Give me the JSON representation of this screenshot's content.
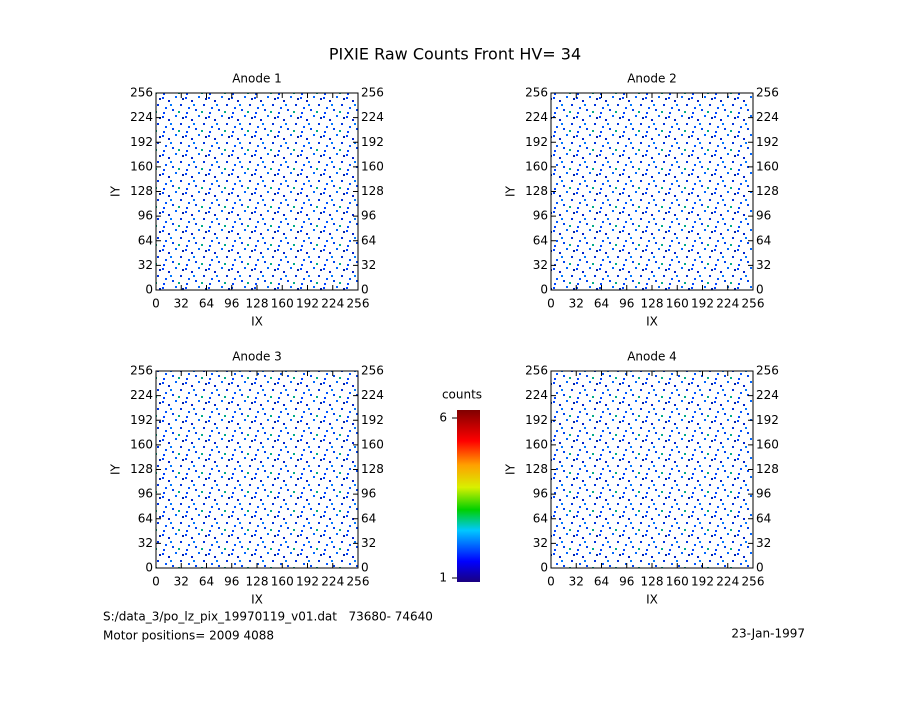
{
  "title": "PIXIE Raw Counts Front HV= 34",
  "chart_data": [
    {
      "type": "heatmap",
      "title": "Anode 1",
      "xlabel": "IX",
      "ylabel": "IY",
      "xlim": [
        0,
        256
      ],
      "ylim": [
        0,
        256
      ],
      "xticks": [
        0,
        32,
        64,
        96,
        128,
        160,
        192,
        224,
        256
      ],
      "yticks": [
        0,
        32,
        64,
        96,
        128,
        160,
        192,
        224,
        256
      ]
    },
    {
      "type": "heatmap",
      "title": "Anode 2",
      "xlabel": "IX",
      "ylabel": "IY",
      "xlim": [
        0,
        256
      ],
      "ylim": [
        0,
        256
      ],
      "xticks": [
        0,
        32,
        64,
        96,
        128,
        160,
        192,
        224,
        256
      ],
      "yticks": [
        0,
        32,
        64,
        96,
        128,
        160,
        192,
        224,
        256
      ]
    },
    {
      "type": "heatmap",
      "title": "Anode 3",
      "xlabel": "IX",
      "ylabel": "IY",
      "xlim": [
        0,
        256
      ],
      "ylim": [
        0,
        256
      ],
      "xticks": [
        0,
        32,
        64,
        96,
        128,
        160,
        192,
        224,
        256
      ],
      "yticks": [
        0,
        32,
        64,
        96,
        128,
        160,
        192,
        224,
        256
      ]
    },
    {
      "type": "heatmap",
      "title": "Anode 4",
      "xlabel": "IX",
      "ylabel": "IY",
      "xlim": [
        0,
        256
      ],
      "ylim": [
        0,
        256
      ],
      "xticks": [
        0,
        32,
        64,
        96,
        128,
        160,
        192,
        224,
        256
      ],
      "yticks": [
        0,
        32,
        64,
        96,
        128,
        160,
        192,
        224,
        256
      ]
    }
  ],
  "colorbar": {
    "label": "counts",
    "lim": [
      1,
      6
    ],
    "ticks": [
      1,
      6
    ]
  },
  "footer": {
    "file": "S:/data_3/po_lz_pix_19970119_v01.dat   73680- 74640",
    "motor": "Motor positions= 2009 4088",
    "date": "23-Jan-1997"
  }
}
